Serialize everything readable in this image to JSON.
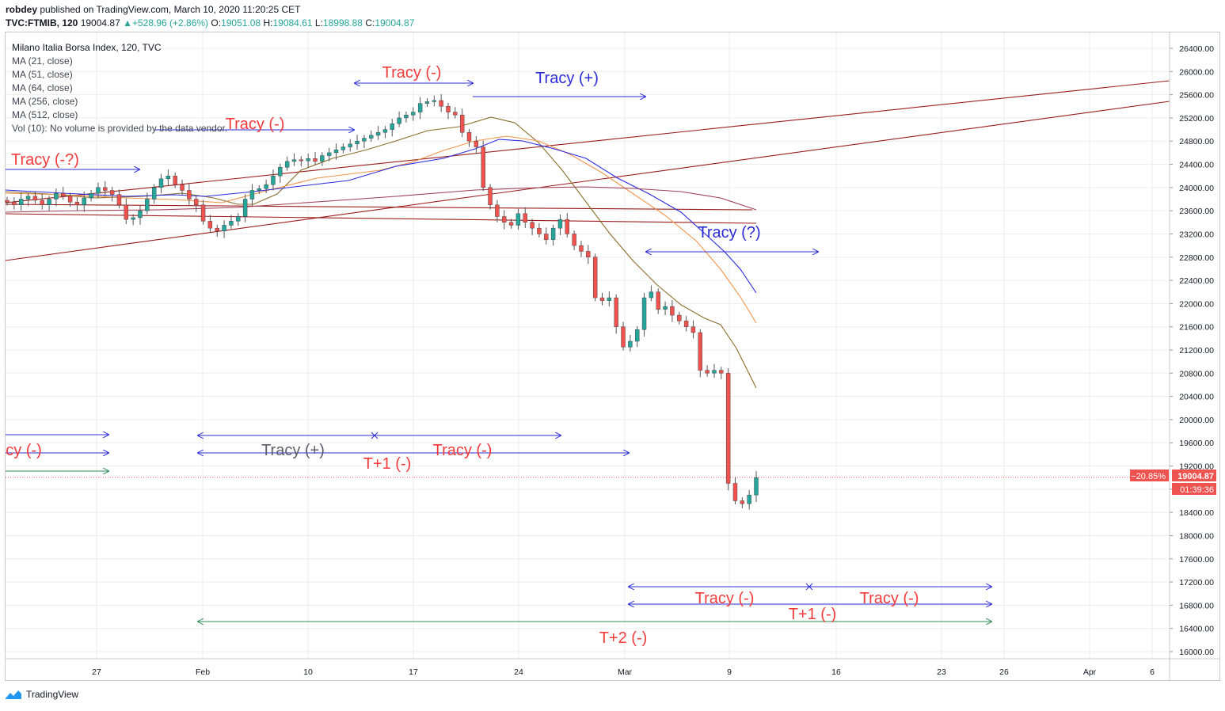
{
  "header": {
    "author": "robdey",
    "published_text": "published on TradingView.com, March 10, 2020 11:20:25 CET",
    "symbol": "TVC:FTMIB, 120",
    "last": "19004.87",
    "change": "+528.96 (+2.86%)",
    "open_label": "O:",
    "open": "19051.08",
    "high_label": "H:",
    "high": "19084.61",
    "low_label": "L:",
    "low": "18998.88",
    "close_label": "C:",
    "close": "19004.87"
  },
  "legend": {
    "title": "Milano Italia Borsa Index, 120, TVC",
    "ma": [
      "MA (21, close)",
      "MA (51, close)",
      "MA (64, close)",
      "MA (256, close)",
      "MA (512, close)"
    ],
    "volume": "Vol (10): No volume is provided by the data vendor."
  },
  "price_badges": {
    "pct": "−20.85%",
    "price": "19004.87",
    "countdown": "01:39:36"
  },
  "footer": {
    "brand": "TradingView"
  },
  "colors": {
    "up": "#26a69a",
    "down": "#ef5350",
    "blue": "#2b2bd6",
    "red_text": "#f23b3b",
    "green_line": "#2e8b57",
    "channel": "#9c1c1c",
    "ma21": "#8b6d2a",
    "ma51": "#f0944c",
    "ma64": "#2a2ae0",
    "ma256": "#a0405a",
    "ma512": "#8b1e1e"
  },
  "chart_data": {
    "type": "candlestick",
    "title": "Milano Italia Borsa Index, 120, TVC",
    "interval": "120",
    "ylim": [
      15800,
      26600
    ],
    "y_ticks": [
      "26400.00",
      "26000.00",
      "25600.00",
      "25200.00",
      "24800.00",
      "24400.00",
      "24000.00",
      "23600.00",
      "23200.00",
      "22800.00",
      "22400.00",
      "22000.00",
      "21600.00",
      "21200.00",
      "20800.00",
      "20400.00",
      "20000.00",
      "19600.00",
      "19200.00",
      "18800.00",
      "18400.00",
      "18000.00",
      "17600.00",
      "17200.00",
      "16800.00",
      "16400.00",
      "16000.00"
    ],
    "x_ticks": [
      "27",
      "Feb",
      "10",
      "17",
      "24",
      "Mar",
      "9",
      "16",
      "23",
      "26",
      "Apr",
      "6"
    ],
    "last_price": 19004.87,
    "ma_lines": [
      "MA (21, close)",
      "MA (51, close)",
      "MA (64, close)",
      "MA (256, close)",
      "MA (512, close)"
    ],
    "annotations": [
      "Tracy (-)",
      "Tracy (+)",
      "Tracy (-)",
      "Tracy (-?)",
      "Tracy (?)",
      "cy (-)",
      "Tracy (+)",
      "Tracy (-)",
      "T+1 (-)",
      "Tracy (-)",
      "Tracy (-)",
      "T+1 (-)",
      "T+2 (-)"
    ],
    "grid": true,
    "legend_position": "top-left"
  }
}
